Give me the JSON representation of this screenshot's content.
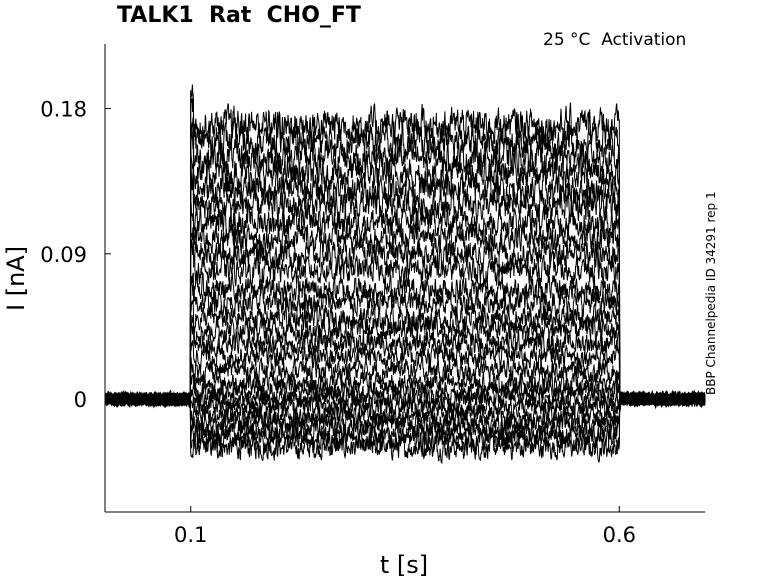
{
  "chart_data": {
    "type": "line",
    "title": "TALK1  Rat  CHO_FT",
    "subtitle": "25 °C  Activation",
    "side_note": "BBP Channelpedia ID 34291 rep 1",
    "xlabel": "t [s]",
    "ylabel": "I [nA]",
    "xlim": [
      0.0,
      0.7
    ],
    "ylim": [
      -0.07,
      0.22
    ],
    "x_ticks": [
      0.1,
      0.6
    ],
    "x_tick_labels": [
      "0.1",
      "0.6"
    ],
    "y_ticks": [
      0,
      0.09,
      0.18
    ],
    "y_tick_labels": [
      "0",
      "0.09",
      "0.18"
    ],
    "grid": false,
    "legend": "none",
    "line_color": "#000000",
    "step_on": 0.1,
    "step_off": 0.6,
    "baseline_current": 0.0,
    "noise_amplitude": 0.006,
    "sweep_steady_currents": [
      -0.03,
      -0.025,
      -0.02,
      -0.015,
      -0.01,
      -0.005,
      0.0,
      0.005,
      0.01,
      0.018,
      0.027,
      0.035,
      0.043,
      0.05,
      0.06,
      0.068,
      0.08,
      0.09,
      0.1,
      0.11,
      0.12,
      0.13,
      0.14,
      0.15,
      0.16,
      0.17
    ],
    "sweep_step_increment": 0.01
  }
}
